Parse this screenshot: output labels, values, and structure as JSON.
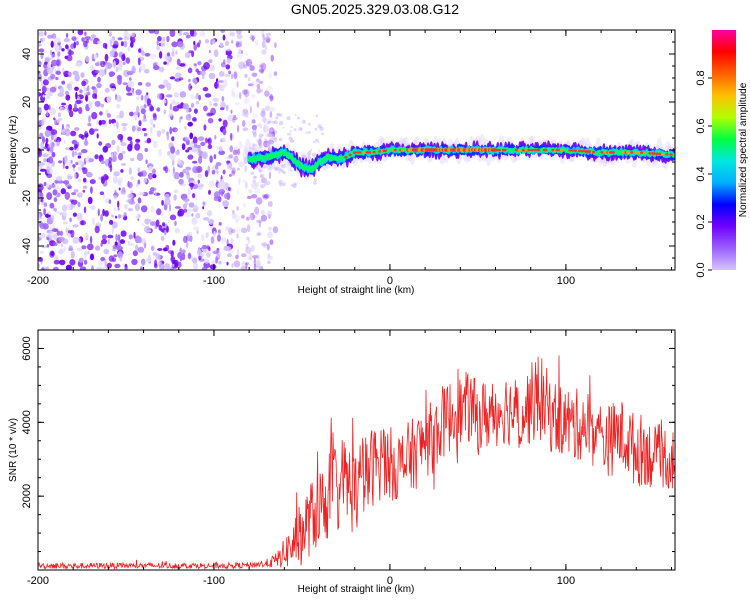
{
  "title": "GN05.2025.329.03.08.G12",
  "colors": {
    "snr_line": "#ee2222",
    "track": "#ff3030",
    "noise": "#7a10f0",
    "axis": "#000000"
  },
  "chart_data": [
    {
      "type": "heatmap",
      "name": "spectrogram",
      "xlabel": "Height of straight line (km)",
      "ylabel": "Frequency (Hz)",
      "xlim": [
        -200,
        162
      ],
      "ylim": [
        -50,
        50
      ],
      "xticks": [
        -200,
        -100,
        0,
        100
      ],
      "yticks": [
        -40,
        -20,
        0,
        20,
        40
      ],
      "colorbar": {
        "label": "Normalized spectral amplitude",
        "range": [
          0,
          1
        ],
        "ticks": [
          "0.0",
          "0.2",
          "0.4",
          "0.6",
          "0.8"
        ],
        "tick_values": [
          0,
          0.2,
          0.4,
          0.6,
          0.8
        ],
        "colormap": [
          "#d6c4ff",
          "#9a60ff",
          "#7000ff",
          "#0000ff",
          "#00b0ff",
          "#00e8e0",
          "#00ff40",
          "#b0ff00",
          "#ffc000",
          "#ff6000",
          "#ff0000",
          "#ff00a0"
        ]
      },
      "noise_region": {
        "x_start": -200,
        "x_end": -75,
        "freq_range": [
          -50,
          50
        ]
      },
      "signal_track": [
        {
          "x": -80,
          "y": -4
        },
        {
          "x": -70,
          "y": -3
        },
        {
          "x": -60,
          "y": -1
        },
        {
          "x": -55,
          "y": -4
        },
        {
          "x": -50,
          "y": -7
        },
        {
          "x": -45,
          "y": -8
        },
        {
          "x": -40,
          "y": -5
        },
        {
          "x": -35,
          "y": -3
        },
        {
          "x": -30,
          "y": -4
        },
        {
          "x": -25,
          "y": -3
        },
        {
          "x": -20,
          "y": -1
        },
        {
          "x": -10,
          "y": -1
        },
        {
          "x": 0,
          "y": 0
        },
        {
          "x": 10,
          "y": 0
        },
        {
          "x": 20,
          "y": 0
        },
        {
          "x": 40,
          "y": 0
        },
        {
          "x": 60,
          "y": 0
        },
        {
          "x": 80,
          "y": 0
        },
        {
          "x": 100,
          "y": 0
        },
        {
          "x": 120,
          "y": -1
        },
        {
          "x": 140,
          "y": -1
        },
        {
          "x": 162,
          "y": -2
        }
      ]
    },
    {
      "type": "line",
      "name": "snr",
      "xlabel": "Height of straight line (km)",
      "ylabel": "SNR (10 * v/v)",
      "xlim": [
        -200,
        162
      ],
      "ylim": [
        0,
        6500
      ],
      "xticks": [
        -200,
        -100,
        0,
        100
      ],
      "yticks": [
        2000,
        4000,
        6000
      ],
      "series": [
        {
          "name": "SNR",
          "x": [
            -200,
            -180,
            -160,
            -140,
            -120,
            -100,
            -90,
            -80,
            -70,
            -65,
            -60,
            -55,
            -50,
            -45,
            -40,
            -35,
            -30,
            -25,
            -20,
            -15,
            -10,
            -5,
            0,
            5,
            10,
            15,
            20,
            25,
            30,
            35,
            40,
            45,
            50,
            55,
            60,
            65,
            70,
            75,
            80,
            85,
            90,
            95,
            100,
            105,
            110,
            115,
            120,
            125,
            130,
            135,
            140,
            145,
            150,
            155,
            160
          ],
          "y": [
            120,
            110,
            120,
            115,
            120,
            115,
            120,
            130,
            180,
            250,
            450,
            700,
            1000,
            1400,
            1700,
            2000,
            2300,
            2400,
            2100,
            2400,
            2800,
            3000,
            2900,
            2800,
            3000,
            3200,
            3500,
            3600,
            4000,
            4200,
            4300,
            4400,
            4100,
            4200,
            4300,
            4400,
            4300,
            4200,
            4500,
            4700,
            4300,
            4100,
            4000,
            3900,
            4000,
            3800,
            3600,
            3500,
            3700,
            3500,
            3200,
            3300,
            3000,
            3100,
            3000
          ],
          "spread": [
            80,
            80,
            80,
            80,
            80,
            80,
            80,
            80,
            120,
            200,
            400,
            700,
            900,
            1000,
            1100,
            1200,
            1300,
            1300,
            1200,
            1200,
            1100,
            1100,
            1000,
            1000,
            1000,
            1000,
            1000,
            1000,
            1000,
            1000,
            1000,
            1000,
            1000,
            1000,
            1000,
            1000,
            1000,
            1000,
            1100,
            1200,
            1100,
            1000,
            1000,
            1000,
            1000,
            1000,
            1000,
            1000,
            1000,
            1000,
            1000,
            1000,
            900,
            900,
            900
          ]
        }
      ]
    }
  ]
}
